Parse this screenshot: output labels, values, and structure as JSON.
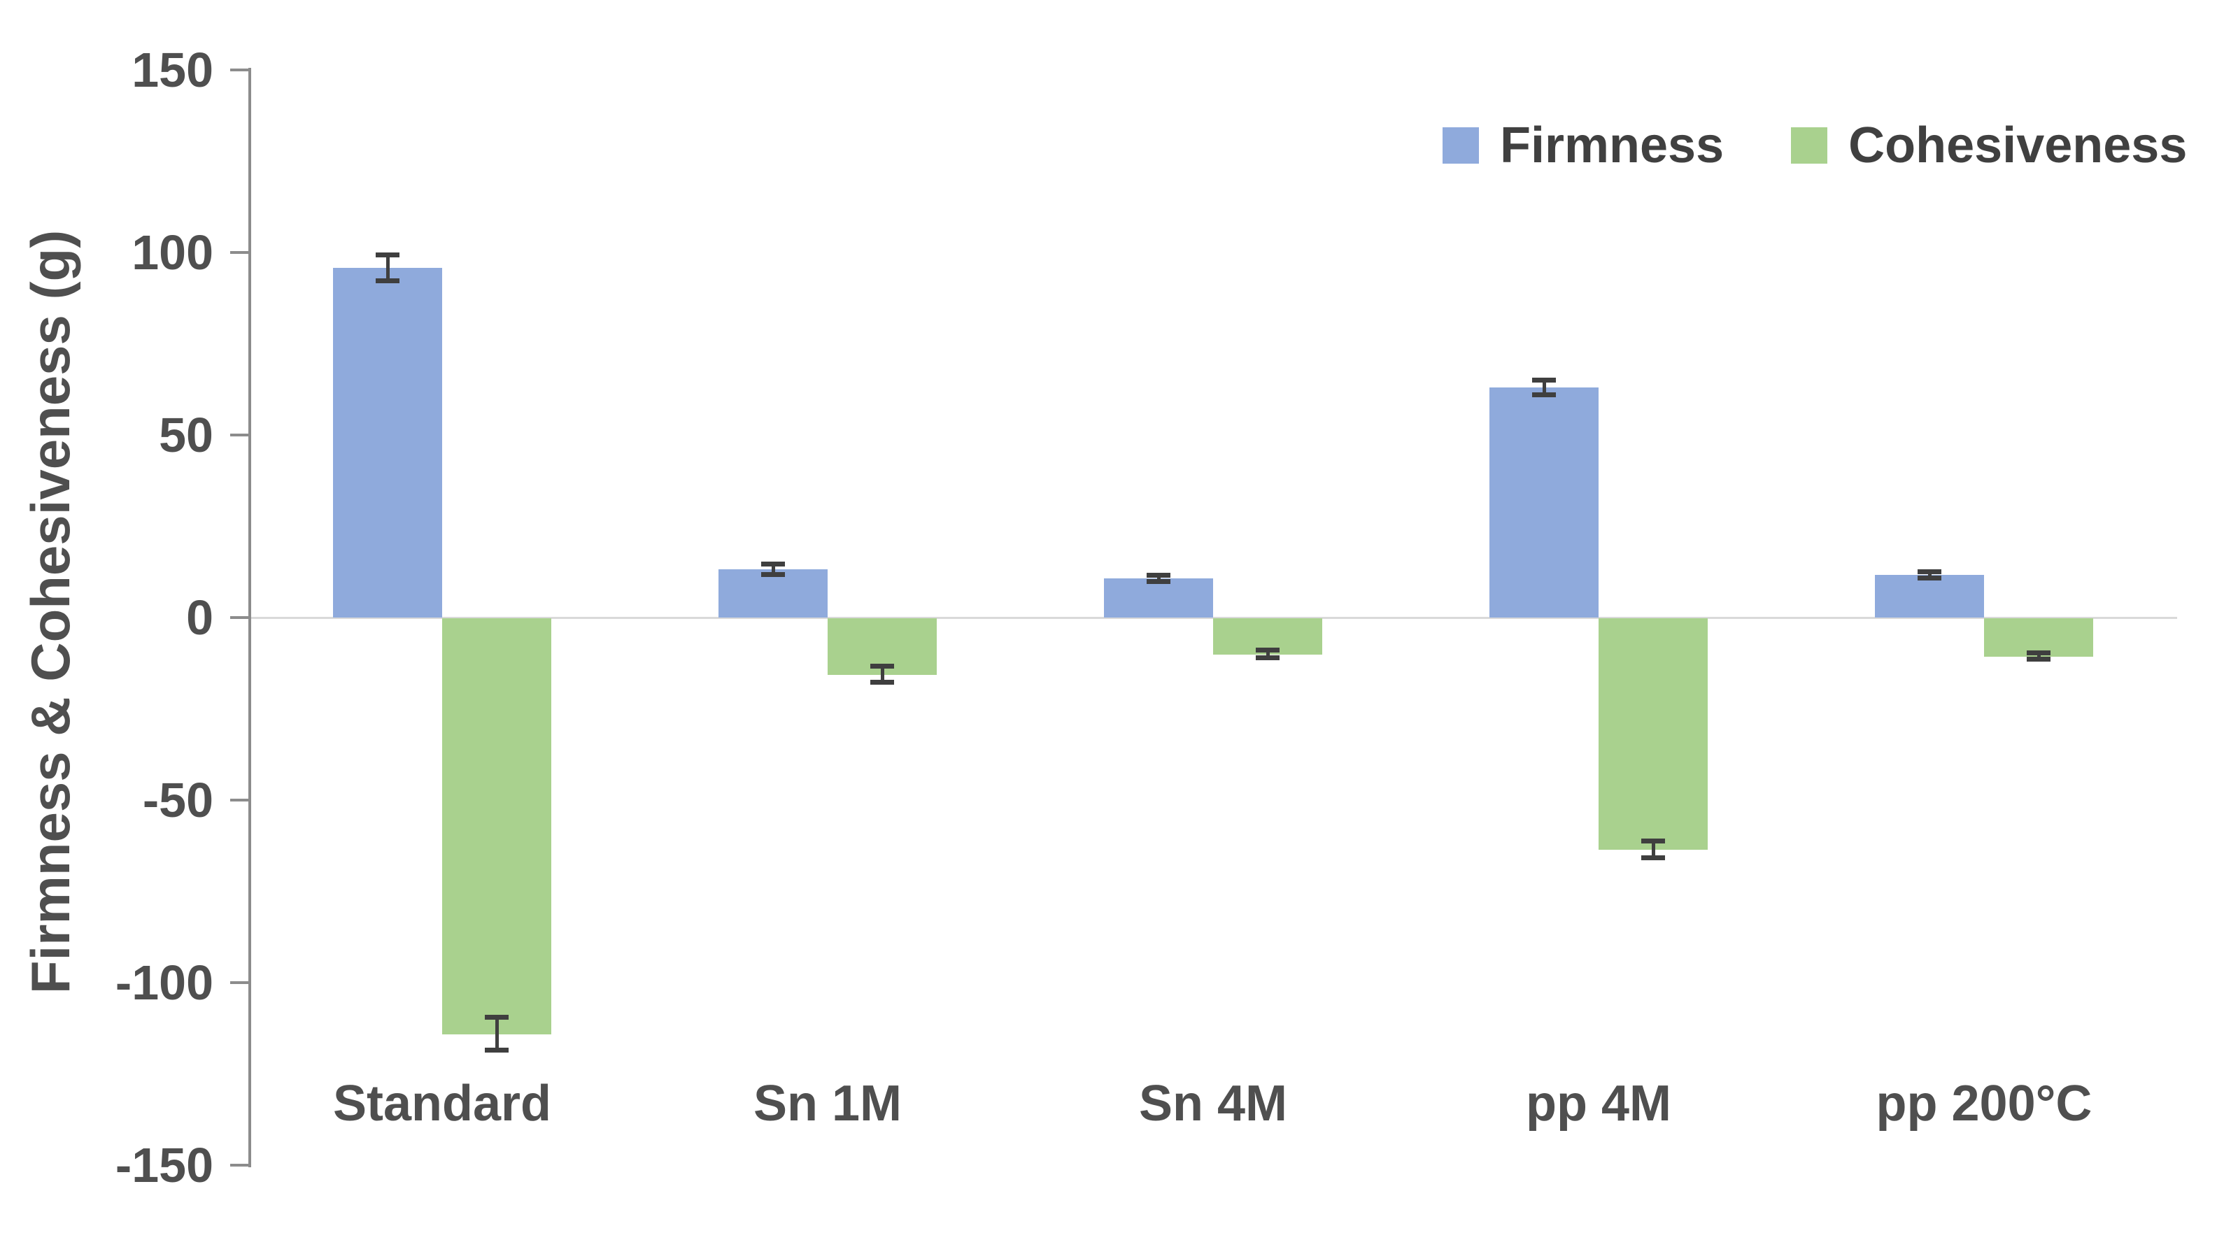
{
  "chart_data": {
    "type": "bar",
    "title": "",
    "xlabel": "",
    "ylabel": "Firmness & Cohesiveness (g)",
    "categories": [
      "Standard",
      "Sn 1M",
      "Sn 4M",
      "pp 4M",
      "pp 200°C"
    ],
    "series": [
      {
        "name": "Firmness",
        "color": "#8FAADC",
        "values": [
          95.8,
          13.2,
          10.7,
          63.0,
          11.7
        ],
        "errors": [
          3.6,
          1.5,
          0.9,
          2.0,
          0.9
        ]
      },
      {
        "name": "Cohesiveness",
        "color": "#A9D18E",
        "values": [
          -114.0,
          -15.5,
          -10.0,
          -63.5,
          -10.5
        ],
        "errors": [
          4.5,
          2.2,
          1.0,
          2.3,
          0.9
        ]
      }
    ],
    "y_axis": {
      "min": -150,
      "max": 150,
      "step": 50,
      "tick_labels": [
        "150",
        "100",
        "50",
        "0",
        "-50",
        "-100",
        "-150"
      ]
    },
    "grid": false,
    "legend_position": "top-right"
  },
  "legend": {
    "items": [
      {
        "label": "Firmness",
        "color": "#8FAADC"
      },
      {
        "label": "Cohesiveness",
        "color": "#A9D18E"
      }
    ]
  },
  "colors": {
    "axis_line": "#8c8c8c",
    "zero_line": "#d9d9d9",
    "error_bar": "#3f3f3f",
    "text": "#4f4f4f",
    "background": "#ffffff"
  }
}
